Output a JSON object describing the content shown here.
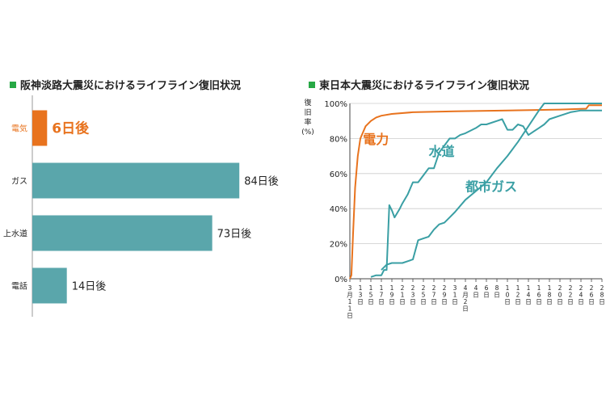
{
  "colors": {
    "accent_green": "#27a845",
    "bar": "#5aa6ab",
    "highlight": "#e8731e",
    "text": "#222222",
    "grid": "#cccccc"
  },
  "chart_data": [
    {
      "type": "bar",
      "orientation": "horizontal",
      "title": "阪神淡路大震災におけるライフライン復旧状況",
      "categories": [
        "電気",
        "ガス",
        "上水道",
        "電話"
      ],
      "values": [
        6,
        84,
        73,
        14
      ],
      "value_labels": [
        "6日後",
        "84日後",
        "73日後",
        "14日後"
      ],
      "highlight_index": 0,
      "xlim": [
        0,
        100
      ]
    },
    {
      "type": "line",
      "title": "東日本大震災におけるライフライン復旧状況",
      "ylabel_lines": [
        "復",
        "旧",
        "率",
        "(%)"
      ],
      "ylim": [
        0,
        100
      ],
      "yticks": [
        0,
        20,
        40,
        60,
        80,
        100
      ],
      "ytick_labels": [
        "0%",
        "20%",
        "40%",
        "60%",
        "80%",
        "100%"
      ],
      "x_unit": "days since March 11",
      "xlim": [
        0,
        48
      ],
      "xticks": [
        {
          "x": 0,
          "label": "3月11日"
        },
        {
          "x": 2,
          "label": "13日"
        },
        {
          "x": 4,
          "label": "15日"
        },
        {
          "x": 6,
          "label": "17日"
        },
        {
          "x": 8,
          "label": "19日"
        },
        {
          "x": 10,
          "label": "21日"
        },
        {
          "x": 12,
          "label": "23日"
        },
        {
          "x": 14,
          "label": "25日"
        },
        {
          "x": 16,
          "label": "27日"
        },
        {
          "x": 18,
          "label": "29日"
        },
        {
          "x": 20,
          "label": "31日"
        },
        {
          "x": 22,
          "label": "4月2日"
        },
        {
          "x": 24,
          "label": "4日"
        },
        {
          "x": 26,
          "label": "6日"
        },
        {
          "x": 28,
          "label": "8日"
        },
        {
          "x": 30,
          "label": "10日"
        },
        {
          "x": 32,
          "label": "12日"
        },
        {
          "x": 34,
          "label": "14日"
        },
        {
          "x": 36,
          "label": "16日"
        },
        {
          "x": 38,
          "label": "18日"
        },
        {
          "x": 40,
          "label": "20日"
        },
        {
          "x": 42,
          "label": "22日"
        },
        {
          "x": 44,
          "label": "24日"
        },
        {
          "x": 46,
          "label": "26日"
        },
        {
          "x": 48,
          "label": "28日"
        }
      ],
      "series": [
        {
          "name": "電力",
          "color": "#e8731e",
          "points": [
            [
              0,
              0
            ],
            [
              0.3,
              2
            ],
            [
              0.6,
              25
            ],
            [
              1,
              52
            ],
            [
              1.5,
              70
            ],
            [
              2,
              80
            ],
            [
              3,
              87
            ],
            [
              4,
              90
            ],
            [
              5,
              92
            ],
            [
              6,
              93
            ],
            [
              8,
              94
            ],
            [
              12,
              95
            ],
            [
              20,
              95.5
            ],
            [
              30,
              96
            ],
            [
              40,
              96.5
            ],
            [
              45,
              97
            ],
            [
              45.5,
              99
            ],
            [
              48,
              99
            ]
          ]
        },
        {
          "name": "水道",
          "color": "#3a9fa4",
          "points": [
            [
              4,
              1
            ],
            [
              5,
              2
            ],
            [
              6,
              2
            ],
            [
              6.5,
              5
            ],
            [
              7,
              5
            ],
            [
              7.5,
              42
            ],
            [
              8,
              39
            ],
            [
              8.5,
              35
            ],
            [
              9.5,
              40
            ],
            [
              10,
              43
            ],
            [
              11,
              48
            ],
            [
              12,
              55
            ],
            [
              13,
              55
            ],
            [
              14,
              59
            ],
            [
              15,
              63
            ],
            [
              16,
              63
            ],
            [
              17,
              72
            ],
            [
              18,
              76
            ],
            [
              19,
              80
            ],
            [
              20,
              80
            ],
            [
              21,
              82
            ],
            [
              22,
              83
            ],
            [
              24,
              86
            ],
            [
              25,
              88
            ],
            [
              26,
              88
            ],
            [
              28,
              90
            ],
            [
              29,
              91
            ],
            [
              30,
              85
            ],
            [
              31,
              85
            ],
            [
              32,
              88
            ],
            [
              33,
              87
            ],
            [
              34,
              82
            ],
            [
              35,
              84
            ],
            [
              36,
              86
            ],
            [
              37,
              88
            ],
            [
              38,
              91
            ],
            [
              40,
              93
            ],
            [
              42,
              95
            ],
            [
              44,
              96
            ],
            [
              46,
              96
            ],
            [
              48,
              96
            ]
          ]
        },
        {
          "name": "都市ガス",
          "color": "#3a9fa4",
          "points": [
            [
              6,
              5
            ],
            [
              7,
              8
            ],
            [
              8,
              9
            ],
            [
              9,
              9
            ],
            [
              10,
              9
            ],
            [
              11,
              10
            ],
            [
              12,
              11
            ],
            [
              13,
              22
            ],
            [
              14,
              23
            ],
            [
              15,
              24
            ],
            [
              16,
              28
            ],
            [
              17,
              31
            ],
            [
              18,
              32
            ],
            [
              19,
              35
            ],
            [
              20,
              38
            ],
            [
              22,
              45
            ],
            [
              24,
              50
            ],
            [
              26,
              55
            ],
            [
              28,
              63
            ],
            [
              30,
              70
            ],
            [
              32,
              78
            ],
            [
              34,
              87
            ],
            [
              36,
              96
            ],
            [
              37,
              100
            ],
            [
              48,
              100
            ]
          ]
        }
      ]
    }
  ]
}
